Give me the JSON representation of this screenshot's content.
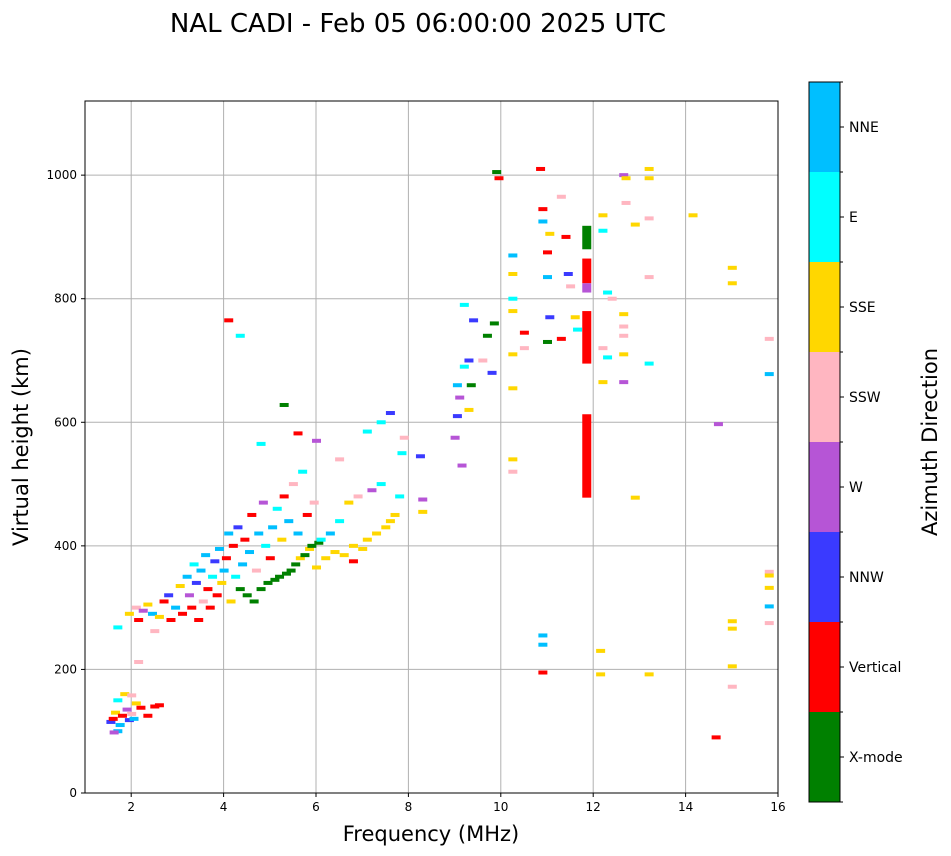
{
  "chart_data": {
    "type": "scatter",
    "title": "NAL CADI - Feb 05 06:00:00 2025 UTC",
    "xlabel": "Frequency (MHz)",
    "ylabel": "Virtual height (km)",
    "xlim": [
      1,
      16
    ],
    "ylim": [
      0,
      1120
    ],
    "xticks": [
      2,
      4,
      6,
      8,
      10,
      12,
      14,
      16
    ],
    "yticks": [
      0,
      200,
      400,
      600,
      800,
      1000
    ],
    "grid": true,
    "colorbar": {
      "label": "Azimuth Direction",
      "categories": [
        {
          "name": "X-mode",
          "color": "#008000"
        },
        {
          "name": "Vertical",
          "color": "#ff0000"
        },
        {
          "name": "NNW",
          "color": "#3a3aff"
        },
        {
          "name": "W",
          "color": "#b655d6"
        },
        {
          "name": "SSW",
          "color": "#ffb6c1"
        },
        {
          "name": "SSE",
          "color": "#ffd700"
        },
        {
          "name": "E",
          "color": "#00ffff"
        },
        {
          "name": "NNE",
          "color": "#00bfff"
        }
      ]
    },
    "points": [
      {
        "x": 1.55,
        "y": 115,
        "c": "NNW"
      },
      {
        "x": 1.6,
        "y": 120,
        "c": "Vertical"
      },
      {
        "x": 1.65,
        "y": 130,
        "c": "SSE"
      },
      {
        "x": 1.7,
        "y": 150,
        "c": "E"
      },
      {
        "x": 1.75,
        "y": 110,
        "c": "NNE"
      },
      {
        "x": 1.8,
        "y": 125,
        "c": "Vertical"
      },
      {
        "x": 1.85,
        "y": 160,
        "c": "SSE"
      },
      {
        "x": 1.9,
        "y": 135,
        "c": "W"
      },
      {
        "x": 1.95,
        "y": 118,
        "c": "NNW"
      },
      {
        "x": 2.0,
        "y": 128,
        "c": "SSW"
      },
      {
        "x": 2.05,
        "y": 120,
        "c": "NNE"
      },
      {
        "x": 2.1,
        "y": 145,
        "c": "SSE"
      },
      {
        "x": 2.2,
        "y": 138,
        "c": "Vertical"
      },
      {
        "x": 2.35,
        "y": 125,
        "c": "Vertical"
      },
      {
        "x": 2.5,
        "y": 140,
        "c": "Vertical"
      },
      {
        "x": 2.6,
        "y": 142,
        "c": "Vertical"
      },
      {
        "x": 1.7,
        "y": 100,
        "c": "NNE"
      },
      {
        "x": 1.62,
        "y": 98,
        "c": "W"
      },
      {
        "x": 2.15,
        "y": 212,
        "c": "SSW"
      },
      {
        "x": 2.0,
        "y": 158,
        "c": "SSW"
      },
      {
        "x": 1.7,
        "y": 268,
        "c": "E"
      },
      {
        "x": 1.95,
        "y": 290,
        "c": "SSE"
      },
      {
        "x": 2.1,
        "y": 300,
        "c": "SSW"
      },
      {
        "x": 2.15,
        "y": 280,
        "c": "Vertical"
      },
      {
        "x": 2.25,
        "y": 295,
        "c": "W"
      },
      {
        "x": 2.35,
        "y": 305,
        "c": "SSE"
      },
      {
        "x": 2.45,
        "y": 290,
        "c": "NNE"
      },
      {
        "x": 2.5,
        "y": 262,
        "c": "SSW"
      },
      {
        "x": 2.6,
        "y": 285,
        "c": "SSE"
      },
      {
        "x": 2.7,
        "y": 310,
        "c": "Vertical"
      },
      {
        "x": 2.8,
        "y": 320,
        "c": "NNW"
      },
      {
        "x": 2.85,
        "y": 280,
        "c": "Vertical"
      },
      {
        "x": 2.95,
        "y": 300,
        "c": "NNE"
      },
      {
        "x": 3.05,
        "y": 335,
        "c": "SSE"
      },
      {
        "x": 3.1,
        "y": 290,
        "c": "Vertical"
      },
      {
        "x": 3.2,
        "y": 350,
        "c": "NNE"
      },
      {
        "x": 3.25,
        "y": 320,
        "c": "W"
      },
      {
        "x": 3.3,
        "y": 300,
        "c": "Vertical"
      },
      {
        "x": 3.35,
        "y": 370,
        "c": "E"
      },
      {
        "x": 3.4,
        "y": 340,
        "c": "NNW"
      },
      {
        "x": 3.45,
        "y": 280,
        "c": "Vertical"
      },
      {
        "x": 3.5,
        "y": 360,
        "c": "NNE"
      },
      {
        "x": 3.55,
        "y": 310,
        "c": "SSW"
      },
      {
        "x": 3.6,
        "y": 385,
        "c": "NNE"
      },
      {
        "x": 3.65,
        "y": 330,
        "c": "Vertical"
      },
      {
        "x": 3.7,
        "y": 300,
        "c": "Vertical"
      },
      {
        "x": 3.75,
        "y": 350,
        "c": "E"
      },
      {
        "x": 3.8,
        "y": 375,
        "c": "NNW"
      },
      {
        "x": 3.85,
        "y": 320,
        "c": "Vertical"
      },
      {
        "x": 3.9,
        "y": 395,
        "c": "NNE"
      },
      {
        "x": 3.95,
        "y": 340,
        "c": "SSE"
      },
      {
        "x": 4.0,
        "y": 360,
        "c": "NNE"
      },
      {
        "x": 4.05,
        "y": 380,
        "c": "Vertical"
      },
      {
        "x": 4.1,
        "y": 420,
        "c": "NNE"
      },
      {
        "x": 4.15,
        "y": 310,
        "c": "SSE"
      },
      {
        "x": 4.2,
        "y": 400,
        "c": "Vertical"
      },
      {
        "x": 4.25,
        "y": 350,
        "c": "E"
      },
      {
        "x": 4.3,
        "y": 430,
        "c": "NNW"
      },
      {
        "x": 4.35,
        "y": 330,
        "c": "X-mode"
      },
      {
        "x": 4.4,
        "y": 370,
        "c": "NNE"
      },
      {
        "x": 4.45,
        "y": 410,
        "c": "Vertical"
      },
      {
        "x": 4.5,
        "y": 320,
        "c": "X-mode"
      },
      {
        "x": 4.55,
        "y": 390,
        "c": "NNE"
      },
      {
        "x": 4.6,
        "y": 450,
        "c": "Vertical"
      },
      {
        "x": 4.65,
        "y": 310,
        "c": "X-mode"
      },
      {
        "x": 4.7,
        "y": 360,
        "c": "SSW"
      },
      {
        "x": 4.75,
        "y": 420,
        "c": "NNE"
      },
      {
        "x": 4.8,
        "y": 330,
        "c": "X-mode"
      },
      {
        "x": 4.85,
        "y": 470,
        "c": "W"
      },
      {
        "x": 4.9,
        "y": 400,
        "c": "E"
      },
      {
        "x": 4.95,
        "y": 340,
        "c": "X-mode"
      },
      {
        "x": 5.0,
        "y": 380,
        "c": "Vertical"
      },
      {
        "x": 5.05,
        "y": 430,
        "c": "NNE"
      },
      {
        "x": 5.1,
        "y": 345,
        "c": "X-mode"
      },
      {
        "x": 5.15,
        "y": 460,
        "c": "E"
      },
      {
        "x": 5.2,
        "y": 350,
        "c": "X-mode"
      },
      {
        "x": 5.25,
        "y": 410,
        "c": "SSE"
      },
      {
        "x": 5.3,
        "y": 480,
        "c": "Vertical"
      },
      {
        "x": 5.35,
        "y": 355,
        "c": "X-mode"
      },
      {
        "x": 5.4,
        "y": 440,
        "c": "NNE"
      },
      {
        "x": 5.45,
        "y": 360,
        "c": "X-mode"
      },
      {
        "x": 5.5,
        "y": 500,
        "c": "SSW"
      },
      {
        "x": 5.55,
        "y": 370,
        "c": "X-mode"
      },
      {
        "x": 5.6,
        "y": 420,
        "c": "NNE"
      },
      {
        "x": 5.65,
        "y": 380,
        "c": "SSE"
      },
      {
        "x": 5.7,
        "y": 520,
        "c": "E"
      },
      {
        "x": 5.75,
        "y": 385,
        "c": "X-mode"
      },
      {
        "x": 5.8,
        "y": 450,
        "c": "Vertical"
      },
      {
        "x": 5.85,
        "y": 395,
        "c": "SSE"
      },
      {
        "x": 5.9,
        "y": 400,
        "c": "X-mode"
      },
      {
        "x": 5.95,
        "y": 470,
        "c": "SSW"
      },
      {
        "x": 6.0,
        "y": 365,
        "c": "SSE"
      },
      {
        "x": 6.05,
        "y": 405,
        "c": "X-mode"
      },
      {
        "x": 6.1,
        "y": 410,
        "c": "E"
      },
      {
        "x": 6.2,
        "y": 380,
        "c": "SSE"
      },
      {
        "x": 6.3,
        "y": 420,
        "c": "NNE"
      },
      {
        "x": 6.4,
        "y": 390,
        "c": "SSE"
      },
      {
        "x": 6.5,
        "y": 440,
        "c": "E"
      },
      {
        "x": 6.6,
        "y": 385,
        "c": "SSE"
      },
      {
        "x": 6.7,
        "y": 470,
        "c": "SSE"
      },
      {
        "x": 6.8,
        "y": 400,
        "c": "SSE"
      },
      {
        "x": 6.9,
        "y": 480,
        "c": "SSW"
      },
      {
        "x": 7.0,
        "y": 395,
        "c": "SSE"
      },
      {
        "x": 7.1,
        "y": 410,
        "c": "SSE"
      },
      {
        "x": 7.2,
        "y": 490,
        "c": "W"
      },
      {
        "x": 7.3,
        "y": 420,
        "c": "SSE"
      },
      {
        "x": 7.4,
        "y": 500,
        "c": "E"
      },
      {
        "x": 7.5,
        "y": 430,
        "c": "SSE"
      },
      {
        "x": 7.6,
        "y": 440,
        "c": "SSE"
      },
      {
        "x": 7.7,
        "y": 450,
        "c": "SSE"
      },
      {
        "x": 7.8,
        "y": 480,
        "c": "E"
      },
      {
        "x": 5.3,
        "y": 628,
        "c": "X-mode"
      },
      {
        "x": 4.1,
        "y": 765,
        "c": "Vertical"
      },
      {
        "x": 4.35,
        "y": 740,
        "c": "E"
      },
      {
        "x": 4.8,
        "y": 565,
        "c": "E"
      },
      {
        "x": 5.6,
        "y": 582,
        "c": "Vertical"
      },
      {
        "x": 6.0,
        "y": 570,
        "c": "W"
      },
      {
        "x": 6.5,
        "y": 540,
        "c": "SSW"
      },
      {
        "x": 7.1,
        "y": 585,
        "c": "E"
      },
      {
        "x": 7.4,
        "y": 600,
        "c": "E"
      },
      {
        "x": 7.6,
        "y": 615,
        "c": "NNW"
      },
      {
        "x": 7.85,
        "y": 550,
        "c": "E"
      },
      {
        "x": 7.9,
        "y": 575,
        "c": "SSW"
      },
      {
        "x": 8.25,
        "y": 545,
        "c": "NNW"
      },
      {
        "x": 8.3,
        "y": 475,
        "c": "W"
      },
      {
        "x": 8.3,
        "y": 455,
        "c": "SSE"
      },
      {
        "x": 6.8,
        "y": 375,
        "c": "Vertical"
      },
      {
        "x": 9.0,
        "y": 575,
        "c": "W"
      },
      {
        "x": 9.05,
        "y": 610,
        "c": "NNW"
      },
      {
        "x": 9.1,
        "y": 640,
        "c": "W"
      },
      {
        "x": 9.05,
        "y": 660,
        "c": "NNE"
      },
      {
        "x": 9.15,
        "y": 530,
        "c": "W"
      },
      {
        "x": 9.2,
        "y": 690,
        "c": "E"
      },
      {
        "x": 9.3,
        "y": 620,
        "c": "SSE"
      },
      {
        "x": 9.35,
        "y": 660,
        "c": "X-mode"
      },
      {
        "x": 9.3,
        "y": 700,
        "c": "NNW"
      },
      {
        "x": 9.4,
        "y": 765,
        "c": "NNW"
      },
      {
        "x": 9.6,
        "y": 700,
        "c": "SSW"
      },
      {
        "x": 9.7,
        "y": 740,
        "c": "X-mode"
      },
      {
        "x": 9.8,
        "y": 680,
        "c": "NNW"
      },
      {
        "x": 9.85,
        "y": 760,
        "c": "X-mode"
      },
      {
        "x": 9.9,
        "y": 1005,
        "c": "X-mode"
      },
      {
        "x": 9.95,
        "y": 995,
        "c": "Vertical"
      },
      {
        "x": 9.2,
        "y": 790,
        "c": "E"
      },
      {
        "x": 10.25,
        "y": 870,
        "c": "NNE"
      },
      {
        "x": 10.25,
        "y": 840,
        "c": "SSE"
      },
      {
        "x": 10.25,
        "y": 800,
        "c": "E"
      },
      {
        "x": 10.25,
        "y": 780,
        "c": "SSE"
      },
      {
        "x": 10.25,
        "y": 710,
        "c": "SSE"
      },
      {
        "x": 10.25,
        "y": 655,
        "c": "SSE"
      },
      {
        "x": 10.25,
        "y": 540,
        "c": "SSE"
      },
      {
        "x": 10.25,
        "y": 520,
        "c": "SSW"
      },
      {
        "x": 10.5,
        "y": 745,
        "c": "Vertical"
      },
      {
        "x": 10.5,
        "y": 720,
        "c": "SSW"
      },
      {
        "x": 10.85,
        "y": 1010,
        "c": "Vertical"
      },
      {
        "x": 10.9,
        "y": 945,
        "c": "Vertical"
      },
      {
        "x": 10.9,
        "y": 925,
        "c": "NNE"
      },
      {
        "x": 11.0,
        "y": 875,
        "c": "Vertical"
      },
      {
        "x": 11.0,
        "y": 835,
        "c": "NNE"
      },
      {
        "x": 11.05,
        "y": 770,
        "c": "NNW"
      },
      {
        "x": 11.0,
        "y": 730,
        "c": "X-mode"
      },
      {
        "x": 11.05,
        "y": 905,
        "c": "SSE"
      },
      {
        "x": 11.3,
        "y": 965,
        "c": "SSW"
      },
      {
        "x": 11.3,
        "y": 735,
        "c": "Vertical"
      },
      {
        "x": 11.4,
        "y": 900,
        "c": "Vertical"
      },
      {
        "x": 11.45,
        "y": 840,
        "c": "NNW"
      },
      {
        "x": 11.5,
        "y": 820,
        "c": "SSW"
      },
      {
        "x": 11.6,
        "y": 770,
        "c": "SSE"
      },
      {
        "x": 11.65,
        "y": 750,
        "c": "E"
      },
      {
        "x": 10.9,
        "y": 255,
        "c": "NNE"
      },
      {
        "x": 10.9,
        "y": 240,
        "c": "NNE"
      },
      {
        "x": 10.9,
        "y": 195,
        "c": "Vertical"
      },
      {
        "x": 12.2,
        "y": 910,
        "c": "E"
      },
      {
        "x": 12.2,
        "y": 935,
        "c": "SSE"
      },
      {
        "x": 12.3,
        "y": 810,
        "c": "E"
      },
      {
        "x": 12.4,
        "y": 800,
        "c": "SSW"
      },
      {
        "x": 12.2,
        "y": 720,
        "c": "SSW"
      },
      {
        "x": 12.3,
        "y": 705,
        "c": "E"
      },
      {
        "x": 12.2,
        "y": 665,
        "c": "SSE"
      },
      {
        "x": 12.65,
        "y": 1000,
        "c": "W"
      },
      {
        "x": 12.7,
        "y": 955,
        "c": "SSW"
      },
      {
        "x": 12.7,
        "y": 995,
        "c": "SSE"
      },
      {
        "x": 12.9,
        "y": 920,
        "c": "SSE"
      },
      {
        "x": 13.2,
        "y": 1010,
        "c": "SSE"
      },
      {
        "x": 13.2,
        "y": 995,
        "c": "SSE"
      },
      {
        "x": 13.2,
        "y": 930,
        "c": "SSW"
      },
      {
        "x": 13.2,
        "y": 835,
        "c": "SSW"
      },
      {
        "x": 12.65,
        "y": 775,
        "c": "SSE"
      },
      {
        "x": 12.65,
        "y": 755,
        "c": "SSW"
      },
      {
        "x": 12.65,
        "y": 740,
        "c": "SSW"
      },
      {
        "x": 12.65,
        "y": 710,
        "c": "SSE"
      },
      {
        "x": 12.65,
        "y": 665,
        "c": "W"
      },
      {
        "x": 13.2,
        "y": 695,
        "c": "E"
      },
      {
        "x": 12.9,
        "y": 478,
        "c": "SSE"
      },
      {
        "x": 12.15,
        "y": 230,
        "c": "SSE"
      },
      {
        "x": 12.15,
        "y": 192,
        "c": "SSE"
      },
      {
        "x": 13.2,
        "y": 192,
        "c": "SSE"
      },
      {
        "x": 14.15,
        "y": 935,
        "c": "SSE"
      },
      {
        "x": 14.7,
        "y": 597,
        "c": "W"
      },
      {
        "x": 15.0,
        "y": 850,
        "c": "SSE"
      },
      {
        "x": 15.0,
        "y": 825,
        "c": "SSE"
      },
      {
        "x": 15.0,
        "y": 278,
        "c": "SSE"
      },
      {
        "x": 15.0,
        "y": 266,
        "c": "SSE"
      },
      {
        "x": 15.0,
        "y": 205,
        "c": "SSE"
      },
      {
        "x": 15.0,
        "y": 172,
        "c": "SSW"
      },
      {
        "x": 14.65,
        "y": 90,
        "c": "Vertical"
      },
      {
        "x": 15.8,
        "y": 735,
        "c": "SSW"
      },
      {
        "x": 15.8,
        "y": 678,
        "c": "NNE"
      },
      {
        "x": 15.8,
        "y": 358,
        "c": "SSW"
      },
      {
        "x": 15.8,
        "y": 352,
        "c": "SSE"
      },
      {
        "x": 15.8,
        "y": 332,
        "c": "SSE"
      },
      {
        "x": 15.8,
        "y": 302,
        "c": "NNE"
      },
      {
        "x": 15.8,
        "y": 275,
        "c": "SSW"
      }
    ],
    "bars": [
      {
        "x": 11.85,
        "y0": 880,
        "y1": 918,
        "c": "X-mode"
      },
      {
        "x": 11.85,
        "y0": 825,
        "y1": 865,
        "c": "Vertical"
      },
      {
        "x": 11.85,
        "y0": 810,
        "y1": 825,
        "c": "W"
      },
      {
        "x": 11.85,
        "y0": 695,
        "y1": 780,
        "c": "Vertical"
      },
      {
        "x": 11.85,
        "y0": 478,
        "y1": 613,
        "c": "Vertical"
      }
    ]
  }
}
